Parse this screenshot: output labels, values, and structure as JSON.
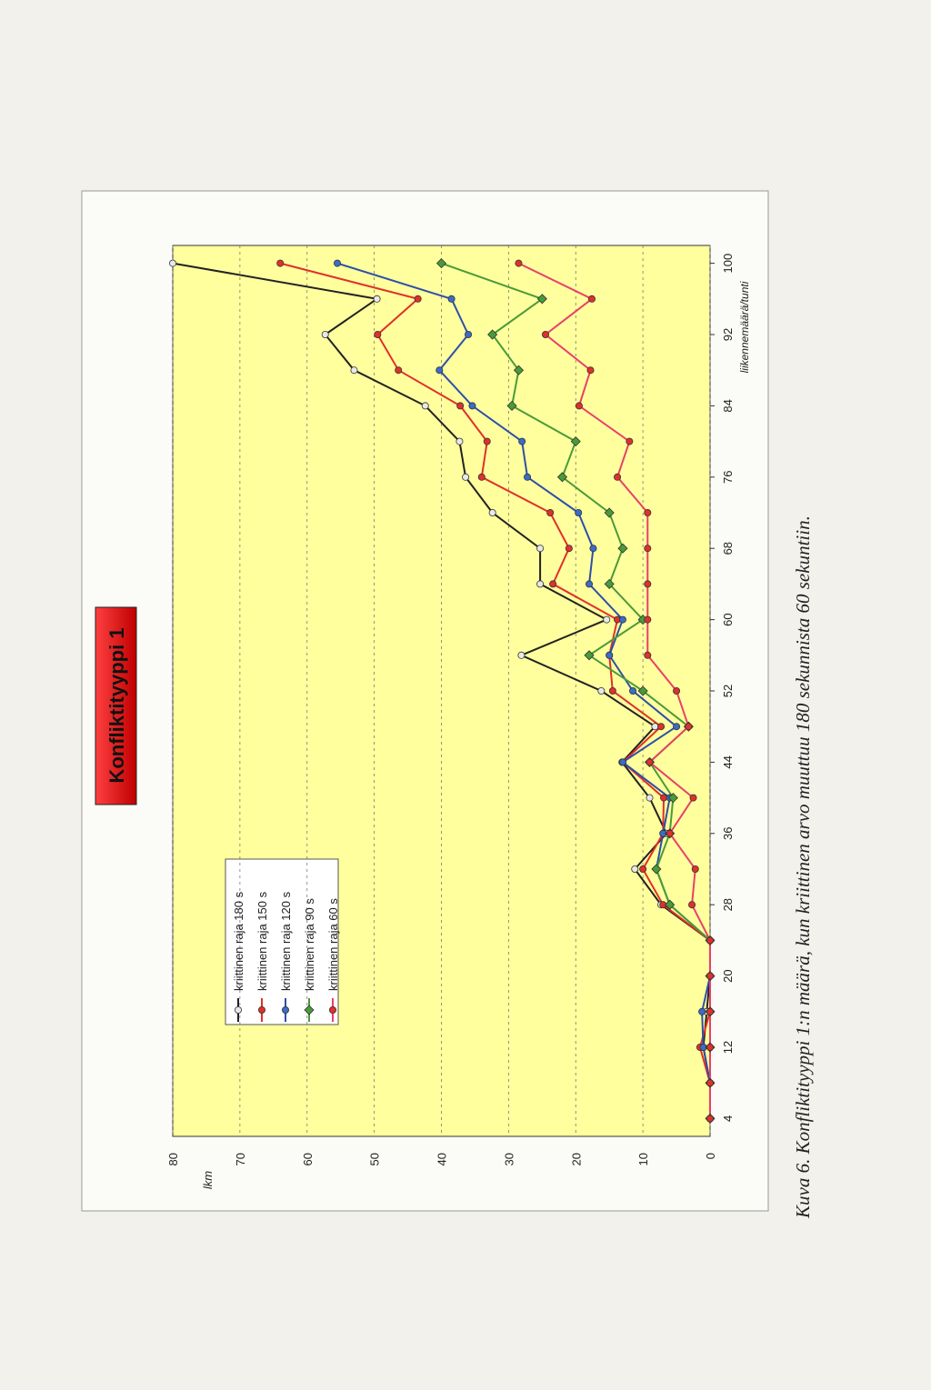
{
  "chart_data": {
    "type": "line",
    "title": "Konfliktityyppi 1",
    "y_label": "lkm",
    "x_label": "liikennemäärä/tunti",
    "caption": "Kuva 6. Konfliktityyppi 1:n määrä, kun kriittinen arvo muuttuu 180 sekunnista 60 sekuntiin.",
    "x": [
      4,
      8,
      12,
      16,
      20,
      24,
      28,
      32,
      36,
      40,
      44,
      48,
      52,
      56,
      60,
      64,
      68,
      72,
      76,
      80,
      84,
      88,
      92,
      96,
      100
    ],
    "xlim": [
      2,
      102
    ],
    "xticks": [
      4,
      12,
      20,
      28,
      36,
      44,
      52,
      60,
      68,
      76,
      84,
      92,
      100
    ],
    "ylim": [
      0,
      80
    ],
    "yticks": [
      0,
      10,
      20,
      30,
      40,
      50,
      60,
      70,
      80
    ],
    "grid": true,
    "series": [
      {
        "name": "kriittinen raja 180 s",
        "color": "#222222",
        "marker": "circle",
        "marker_fill": "#e8e8e8",
        "values": [
          0,
          0,
          1,
          0.5,
          0,
          0,
          7.3,
          11.2,
          6.5,
          9,
          13.1,
          8.2,
          16.2,
          28.1,
          15.4,
          25.3,
          25.3,
          32.4,
          36.4,
          37.3,
          42.4,
          53,
          57.3,
          49.6,
          80
        ]
      },
      {
        "name": "kriittinen raja 150 s",
        "color": "#e0302a",
        "marker": "circle",
        "marker_fill": "#e0302a",
        "values": [
          0,
          0,
          1.5,
          0,
          0,
          0,
          7,
          10,
          7,
          6.9,
          13,
          7.3,
          14.5,
          15,
          13.8,
          23.4,
          21,
          23.8,
          34,
          33.2,
          37.2,
          46.4,
          49.5,
          43.5,
          64
        ]
      },
      {
        "name": "kriittinen raja 120 s",
        "color": "#2d4fa8",
        "marker": "circle",
        "marker_fill": "#3a6cc8",
        "values": [
          0,
          0,
          1,
          1.2,
          0,
          0,
          6,
          8,
          7,
          6,
          13,
          5,
          11.5,
          15,
          13,
          18,
          17.4,
          19.6,
          27.2,
          28,
          35.4,
          40.3,
          36,
          38.5,
          55.5
        ]
      },
      {
        "name": "kriittinen raja 90 s",
        "color": "#4a9a3a",
        "marker": "diamond",
        "marker_fill": "#4a9a3a",
        "values": [
          0,
          0,
          0,
          0,
          0,
          0,
          6,
          8,
          6,
          5.5,
          9,
          3.2,
          10,
          18,
          10,
          15,
          13,
          15,
          22,
          20,
          29.5,
          28.5,
          32.4,
          25,
          40
        ]
      },
      {
        "name": "kriittinen raja 60 s",
        "color": "#e8406a",
        "marker": "circle",
        "marker_fill": "#e0302a",
        "values": [
          0,
          0,
          0,
          0,
          0,
          0,
          2.7,
          2.2,
          6,
          2.5,
          9,
          3.2,
          5,
          9.3,
          9.3,
          9.3,
          9.3,
          9.3,
          13.8,
          12,
          19.5,
          17.8,
          24.5,
          17.6,
          28.5
        ]
      }
    ]
  }
}
